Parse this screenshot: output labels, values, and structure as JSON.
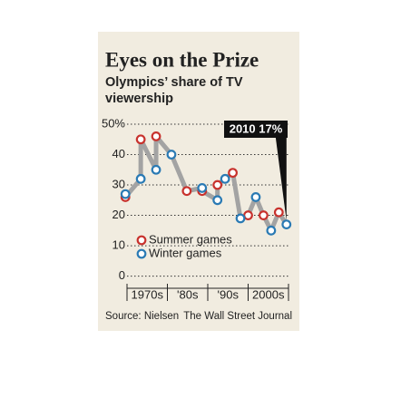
{
  "chart_data": {
    "type": "line",
    "title": "Eyes on the Prize",
    "subtitle": [
      "Olympics’ share of TV",
      "viewership"
    ],
    "series": [
      {
        "name": "Summer games",
        "color": "#c8322d",
        "x": [
          1968,
          1972,
          1976,
          1984,
          1988,
          1992,
          1996,
          2000,
          2004,
          2008
        ],
        "values": [
          26,
          45,
          46,
          28,
          28,
          30,
          34,
          20,
          20,
          21
        ]
      },
      {
        "name": "Winter games",
        "color": "#2a7ab4",
        "x": [
          1968,
          1972,
          1976,
          1980,
          1988,
          1992,
          1994,
          1998,
          2002,
          2006,
          2010
        ],
        "values": [
          27,
          32,
          35,
          40,
          29,
          25,
          32,
          19,
          26,
          15,
          17
        ]
      }
    ],
    "x_labels": [
      "1970s",
      "'80s",
      "'90s",
      "2000s"
    ],
    "xlim": [
      1967,
      2011
    ],
    "ylim": [
      -4,
      50
    ],
    "yticks": [
      {
        "value": 50,
        "label": "50%"
      },
      40,
      30,
      20,
      10,
      0
    ],
    "grid": true,
    "annotation": "2010 17%",
    "source": "Source: Nielsen",
    "credit": "The Wall Street Journal"
  }
}
